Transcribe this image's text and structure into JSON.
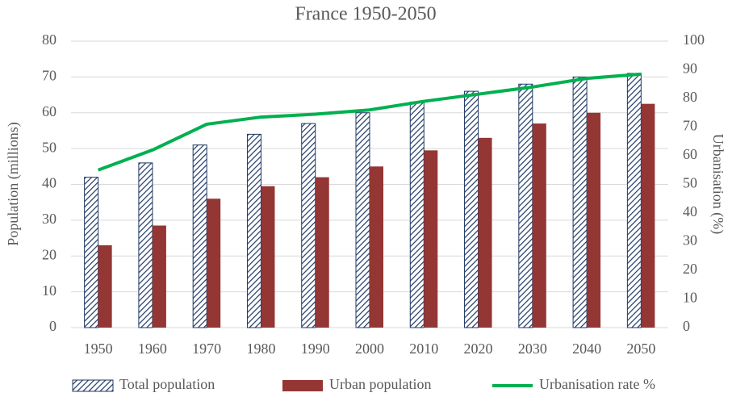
{
  "chart_data": {
    "type": "bar",
    "title": "France 1950-2050",
    "y_label": "Population (millions)",
    "y2_label": "Urbanisation (%)",
    "categories": [
      "1950",
      "1960",
      "1970",
      "1980",
      "1990",
      "2000",
      "2010",
      "2020",
      "2030",
      "2040",
      "2050"
    ],
    "series": [
      {
        "name": "Total population",
        "type": "bar",
        "hatch": true,
        "color": "#1f3864",
        "values": [
          42,
          46,
          51,
          54,
          57,
          60,
          63,
          66,
          68,
          70,
          71
        ]
      },
      {
        "name": "Urban population",
        "type": "bar",
        "color": "#943634",
        "values": [
          23,
          28.5,
          36,
          39.5,
          42,
          45,
          49.5,
          53,
          57,
          60,
          62.5
        ]
      },
      {
        "name": "Urbanisation rate %",
        "type": "line",
        "axis": "y2",
        "color": "#00b050",
        "values": [
          55,
          62,
          71,
          73.5,
          74.5,
          76,
          79,
          81.5,
          84,
          87,
          88.5
        ]
      }
    ],
    "ylim": [
      0,
      80
    ],
    "yticks": [
      0,
      10,
      20,
      30,
      40,
      50,
      60,
      70,
      80
    ],
    "y2lim": [
      0,
      100
    ],
    "y2ticks": [
      0,
      10,
      20,
      30,
      40,
      50,
      60,
      70,
      80,
      90,
      100
    ],
    "grid": true,
    "legend": "bottom"
  }
}
